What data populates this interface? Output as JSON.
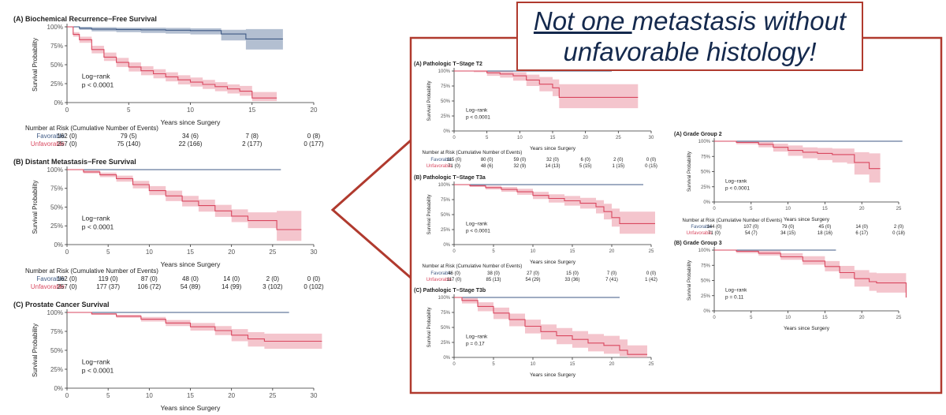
{
  "headline": {
    "underlined": "Not one ",
    "line1_rest": "metastasis without",
    "line2": "unfavorable histology!"
  },
  "colors": {
    "favorable": "#3f5a85",
    "favorable_band": "#9aaac2",
    "unfavorable": "#d9475f",
    "unfavorable_band": "#f1b6c0",
    "accent": "#b03a2e",
    "headline_text": "#14294d"
  },
  "chart_data": [
    {
      "id": "A-left",
      "type": "line",
      "title": "(A) Biochemical Recurrence−Free Survival",
      "xlabel": "Years since Surgery",
      "ylabel": "Survival Probability",
      "xlim": [
        0,
        20
      ],
      "xticks": [
        "0",
        "5",
        "10",
        "15",
        "20"
      ],
      "ylim": [
        0,
        1
      ],
      "yticks": [
        "0%",
        "25%",
        "50%",
        "75%",
        "100%"
      ],
      "annotation": [
        "Log−rank",
        "p < 0.0001"
      ],
      "series": [
        {
          "name": "Favorable",
          "ci": true,
          "x": [
            0,
            1,
            2,
            4,
            6,
            8,
            10,
            12,
            12.5,
            14,
            14.5,
            17.5
          ],
          "y": [
            1.0,
            0.98,
            0.97,
            0.965,
            0.96,
            0.955,
            0.95,
            0.95,
            0.905,
            0.905,
            0.84,
            0.84
          ],
          "lo": [
            1.0,
            0.96,
            0.94,
            0.93,
            0.92,
            0.91,
            0.9,
            0.9,
            0.82,
            0.82,
            0.7,
            0.7
          ],
          "hi": [
            1.0,
            1.0,
            0.995,
            0.99,
            0.99,
            0.985,
            0.98,
            0.98,
            0.96,
            0.96,
            0.97,
            0.97
          ]
        },
        {
          "name": "Unfavorable",
          "ci": true,
          "x": [
            0,
            0.5,
            1,
            2,
            3,
            4,
            5,
            6,
            7,
            8,
            9,
            10,
            11,
            12,
            13,
            14,
            15,
            17
          ],
          "y": [
            1.0,
            0.9,
            0.83,
            0.7,
            0.6,
            0.53,
            0.47,
            0.42,
            0.38,
            0.34,
            0.3,
            0.27,
            0.24,
            0.21,
            0.18,
            0.15,
            0.06,
            0.06
          ],
          "lo": [
            1.0,
            0.87,
            0.79,
            0.65,
            0.55,
            0.47,
            0.41,
            0.36,
            0.32,
            0.28,
            0.24,
            0.21,
            0.18,
            0.15,
            0.12,
            0.09,
            0.02,
            0.02
          ],
          "hi": [
            1.0,
            0.93,
            0.87,
            0.75,
            0.66,
            0.59,
            0.53,
            0.48,
            0.44,
            0.4,
            0.36,
            0.33,
            0.3,
            0.27,
            0.24,
            0.22,
            0.14,
            0.14
          ]
        }
      ],
      "risk_table": {
        "title": "Number at Risk (Cumulative Number of Events)",
        "rows": [
          {
            "label": "Favorable",
            "values": [
              "162 (0)",
              "79 (5)",
              "34 (6)",
              "7 (8)",
              "0 (8)"
            ]
          },
          {
            "label": "Unfavorable",
            "values": [
              "257 (0)",
              "75 (140)",
              "22 (166)",
              "2 (177)",
              "0 (177)"
            ]
          }
        ]
      }
    },
    {
      "id": "B-left",
      "type": "line",
      "title": "(B) Distant Metastasis−Free Survival",
      "xlabel": "Years since Surgery",
      "ylabel": "Survival Probability",
      "xlim": [
        0,
        30
      ],
      "xticks": [
        "0",
        "5",
        "10",
        "15",
        "20",
        "25",
        "30"
      ],
      "ylim": [
        0,
        1
      ],
      "yticks": [
        "0%",
        "25%",
        "50%",
        "75%",
        "100%"
      ],
      "annotation": [
        "Log−rank",
        "p < 0.0001"
      ],
      "series": [
        {
          "name": "Favorable",
          "ci": false,
          "x": [
            0,
            26
          ],
          "y": [
            1.0,
            1.0
          ]
        },
        {
          "name": "Unfavorable",
          "ci": true,
          "x": [
            0,
            2,
            4,
            6,
            8,
            10,
            12,
            14,
            16,
            18,
            20,
            22,
            25.5,
            28.5
          ],
          "y": [
            1.0,
            0.97,
            0.93,
            0.88,
            0.8,
            0.72,
            0.65,
            0.58,
            0.52,
            0.45,
            0.38,
            0.32,
            0.2,
            0.2
          ],
          "lo": [
            1.0,
            0.95,
            0.9,
            0.84,
            0.75,
            0.66,
            0.58,
            0.51,
            0.44,
            0.37,
            0.3,
            0.22,
            0.05,
            0.05
          ],
          "hi": [
            1.0,
            0.99,
            0.96,
            0.92,
            0.85,
            0.78,
            0.72,
            0.65,
            0.6,
            0.53,
            0.47,
            0.43,
            0.45,
            0.45
          ]
        }
      ],
      "risk_table": {
        "title": "Number at Risk (Cumulative Number of Events)",
        "rows": [
          {
            "label": "Favorable",
            "values": [
              "162 (0)",
              "119 (0)",
              "87 (0)",
              "48 (0)",
              "14 (0)",
              "2 (0)",
              "0 (0)"
            ]
          },
          {
            "label": "Unfavorable",
            "values": [
              "257 (0)",
              "177 (37)",
              "106 (72)",
              "54 (89)",
              "14 (99)",
              "3 (102)",
              "0 (102)"
            ]
          }
        ]
      }
    },
    {
      "id": "C-left",
      "type": "line",
      "title": "(C) Prostate Cancer Survival",
      "xlabel": "Years since Surgery",
      "ylabel": "Survival Probability",
      "xlim": [
        0,
        30
      ],
      "xticks": [
        "0",
        "5",
        "10",
        "15",
        "20",
        "25",
        "30"
      ],
      "ylim": [
        0,
        1
      ],
      "yticks": [
        "0%",
        "25%",
        "50%",
        "75%",
        "100%"
      ],
      "annotation": [
        "Log−rank",
        "p < 0.0001"
      ],
      "series": [
        {
          "name": "Favorable",
          "ci": false,
          "x": [
            0,
            27
          ],
          "y": [
            1.0,
            1.0
          ]
        },
        {
          "name": "Unfavorable",
          "ci": true,
          "x": [
            0,
            3,
            6,
            9,
            12,
            15,
            18,
            20,
            22,
            24,
            31
          ],
          "y": [
            1.0,
            0.98,
            0.95,
            0.91,
            0.86,
            0.81,
            0.76,
            0.7,
            0.65,
            0.62,
            0.62
          ],
          "lo": [
            1.0,
            0.97,
            0.93,
            0.88,
            0.82,
            0.76,
            0.7,
            0.62,
            0.55,
            0.52,
            0.52
          ],
          "hi": [
            1.0,
            0.99,
            0.97,
            0.94,
            0.9,
            0.86,
            0.82,
            0.78,
            0.74,
            0.72,
            0.72
          ]
        }
      ]
    },
    {
      "id": "A-mid",
      "type": "line",
      "title": "(A) Pathologic T−Stage T2",
      "xlabel": "Years since Surgery",
      "ylabel": "Survival Probability",
      "xlim": [
        0,
        30
      ],
      "xticks": [
        "0",
        "5",
        "10",
        "15",
        "20",
        "25",
        "30"
      ],
      "ylim": [
        0,
        1
      ],
      "yticks": [
        "0%",
        "25%",
        "50%",
        "75%",
        "100%"
      ],
      "annotation": [
        "Log−rank",
        "p < 0.0001"
      ],
      "series": [
        {
          "name": "Favorable",
          "ci": false,
          "x": [
            0,
            24
          ],
          "y": [
            1.0,
            1.0
          ]
        },
        {
          "name": "Unfavorable",
          "ci": true,
          "x": [
            0,
            3,
            5,
            7,
            9,
            11,
            13,
            15,
            16,
            28
          ],
          "y": [
            1.0,
            1.0,
            0.97,
            0.95,
            0.92,
            0.85,
            0.78,
            0.72,
            0.56,
            0.56
          ],
          "lo": [
            1.0,
            0.98,
            0.92,
            0.89,
            0.84,
            0.75,
            0.66,
            0.58,
            0.38,
            0.38
          ],
          "hi": [
            1.0,
            1.0,
            1.0,
            1.0,
            0.98,
            0.94,
            0.9,
            0.86,
            0.78,
            0.78
          ]
        }
      ],
      "risk_table": {
        "title": "Number at Risk (Cumulative Number of Events)",
        "rows": [
          {
            "label": "Favorable",
            "values": [
              "115 (0)",
              "80 (0)",
              "59 (0)",
              "32 (0)",
              "6 (0)",
              "2 (0)",
              "0 (0)"
            ]
          },
          {
            "label": "Unfavorable",
            "values": [
              "71 (0)",
              "48 (6)",
              "32 (9)",
              "14 (13)",
              "5 (15)",
              "1 (15)",
              "0 (15)"
            ]
          }
        ]
      }
    },
    {
      "id": "B-mid",
      "type": "line",
      "title": "(B) Pathologic T−Stage T3a",
      "xlabel": "Years since Surgery",
      "ylabel": "Survival Probability",
      "xlim": [
        0,
        25
      ],
      "xticks": [
        "0",
        "5",
        "10",
        "15",
        "20",
        "25"
      ],
      "ylim": [
        0,
        1
      ],
      "yticks": [
        "0%",
        "25%",
        "50%",
        "75%",
        "100%"
      ],
      "annotation": [
        "Log−rank",
        "p < 0.0001"
      ],
      "series": [
        {
          "name": "Favorable",
          "ci": false,
          "x": [
            0,
            24
          ],
          "y": [
            1.0,
            1.0
          ]
        },
        {
          "name": "Unfavorable",
          "ci": true,
          "x": [
            0,
            2,
            4,
            6,
            8,
            10,
            12,
            14,
            16,
            18,
            19,
            20,
            21,
            25.5
          ],
          "y": [
            1.0,
            0.98,
            0.95,
            0.92,
            0.88,
            0.82,
            0.77,
            0.73,
            0.69,
            0.63,
            0.55,
            0.45,
            0.35,
            0.35
          ],
          "lo": [
            1.0,
            0.96,
            0.92,
            0.88,
            0.83,
            0.76,
            0.7,
            0.65,
            0.6,
            0.52,
            0.42,
            0.3,
            0.18,
            0.18
          ],
          "hi": [
            1.0,
            1.0,
            0.98,
            0.96,
            0.93,
            0.88,
            0.84,
            0.81,
            0.78,
            0.74,
            0.68,
            0.6,
            0.55,
            0.55
          ]
        }
      ],
      "risk_table": {
        "title": "Number at Risk (Cumulative Number of Events)",
        "rows": [
          {
            "label": "Favorable",
            "values": [
              "46 (0)",
              "38 (0)",
              "27 (0)",
              "15 (0)",
              "7 (0)",
              "0 (0)"
            ]
          },
          {
            "label": "Unfavorable",
            "values": [
              "117 (0)",
              "85 (13)",
              "54 (29)",
              "33 (36)",
              "7 (41)",
              "1 (42)"
            ]
          }
        ]
      }
    },
    {
      "id": "C-mid",
      "type": "line",
      "title": "(C) Pathologic T−Stage T3b",
      "xlabel": "Years since Surgery",
      "ylabel": "Survival Probability",
      "xlim": [
        0,
        25
      ],
      "xticks": [
        "0",
        "5",
        "10",
        "15",
        "20",
        "25"
      ],
      "ylim": [
        0,
        1
      ],
      "yticks": [
        "0%",
        "25%",
        "50%",
        "75%",
        "100%"
      ],
      "annotation": [
        "Log−rank",
        "p = 0.17"
      ],
      "series": [
        {
          "name": "Favorable",
          "ci": false,
          "x": [
            0,
            21
          ],
          "y": [
            1.0,
            1.0
          ]
        },
        {
          "name": "Unfavorable",
          "ci": true,
          "x": [
            0,
            1,
            3,
            5,
            7,
            9,
            11,
            13,
            15,
            17,
            19,
            21,
            22,
            24.5
          ],
          "y": [
            1.0,
            0.95,
            0.85,
            0.74,
            0.63,
            0.52,
            0.43,
            0.36,
            0.3,
            0.24,
            0.2,
            0.12,
            0.05,
            0.05
          ],
          "lo": [
            1.0,
            0.9,
            0.77,
            0.64,
            0.52,
            0.4,
            0.3,
            0.22,
            0.16,
            0.1,
            0.06,
            0.02,
            0.0,
            0.0
          ],
          "hi": [
            1.0,
            0.99,
            0.92,
            0.83,
            0.73,
            0.63,
            0.55,
            0.49,
            0.44,
            0.39,
            0.36,
            0.3,
            0.2,
            0.2
          ]
        }
      ]
    },
    {
      "id": "A-right",
      "type": "line",
      "title": "(A) Grade Group 2",
      "xlabel": "Years since Surgery",
      "ylabel": "Survival Probability",
      "xlim": [
        0,
        25
      ],
      "xticks": [
        "0",
        "5",
        "10",
        "15",
        "20",
        "25"
      ],
      "ylim": [
        0,
        1
      ],
      "yticks": [
        "0%",
        "25%",
        "50%",
        "75%",
        "100%"
      ],
      "annotation": [
        "Log−rank",
        "p < 0.0001"
      ],
      "series": [
        {
          "name": "Favorable",
          "ci": false,
          "x": [
            0,
            25.5
          ],
          "y": [
            1.0,
            1.0
          ]
        },
        {
          "name": "Unfavorable",
          "ci": true,
          "x": [
            0,
            3,
            6,
            8,
            10,
            12,
            14,
            16,
            18,
            19,
            21,
            22.5
          ],
          "y": [
            1.0,
            0.98,
            0.95,
            0.9,
            0.85,
            0.82,
            0.8,
            0.78,
            0.78,
            0.65,
            0.55,
            0.55
          ],
          "lo": [
            1.0,
            0.95,
            0.9,
            0.83,
            0.76,
            0.72,
            0.69,
            0.65,
            0.63,
            0.45,
            0.32,
            0.32
          ],
          "hi": [
            1.0,
            1.0,
            0.99,
            0.96,
            0.93,
            0.9,
            0.89,
            0.88,
            0.88,
            0.82,
            0.8,
            0.8
          ]
        }
      ],
      "risk_table": {
        "title": "Number at Risk (Cumulative Number of Events)",
        "rows": [
          {
            "label": "Favorable",
            "values": [
              "144 (0)",
              "107 (0)",
              "79 (0)",
              "45 (0)",
              "14 (0)",
              "2 (0)"
            ]
          },
          {
            "label": "Unfavorable",
            "values": [
              "71 (0)",
              "54 (7)",
              "34 (15)",
              "18 (16)",
              "6 (17)",
              "0 (18)"
            ]
          }
        ]
      }
    },
    {
      "id": "B-right",
      "type": "line",
      "title": "(B) Grade Group 3",
      "xlabel": "Years since Surgery",
      "ylabel": "Survival Probability",
      "xlim": [
        0,
        25
      ],
      "xticks": [
        "0",
        "5",
        "10",
        "15",
        "20",
        "25"
      ],
      "ylim": [
        0,
        1
      ],
      "yticks": [
        "0%",
        "25%",
        "50%",
        "75%",
        "100%"
      ],
      "annotation": [
        "Log−rank",
        "p = 0.11"
      ],
      "series": [
        {
          "name": "Favorable",
          "ci": false,
          "x": [
            0,
            16.5
          ],
          "y": [
            1.0,
            1.0
          ]
        },
        {
          "name": "Unfavorable",
          "ci": true,
          "x": [
            0,
            3,
            6,
            9,
            12,
            15,
            17,
            19,
            21,
            22,
            25,
            26
          ],
          "y": [
            1.0,
            0.98,
            0.95,
            0.89,
            0.82,
            0.73,
            0.63,
            0.53,
            0.48,
            0.46,
            0.46,
            0.22
          ],
          "lo": [
            1.0,
            0.95,
            0.91,
            0.84,
            0.76,
            0.65,
            0.53,
            0.4,
            0.33,
            0.3,
            0.3,
            0.0
          ],
          "hi": [
            1.0,
            1.0,
            0.99,
            0.95,
            0.9,
            0.82,
            0.74,
            0.67,
            0.63,
            0.62,
            0.62,
            0.62
          ]
        }
      ]
    }
  ]
}
